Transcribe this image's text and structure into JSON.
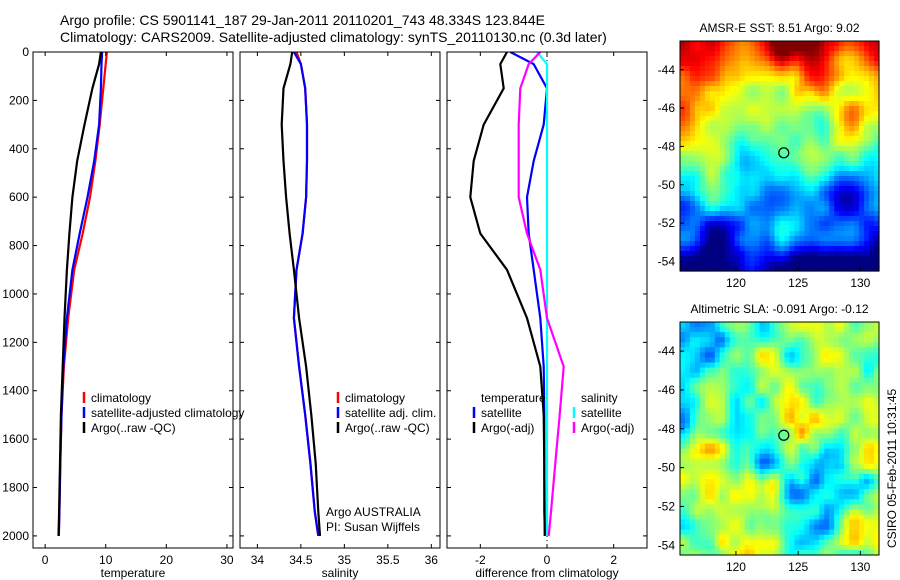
{
  "header": {
    "line1": "Argo profile: CS 5901141_187 29-Jan-2011 20110201_743 48.334S 123.844E",
    "line2": "Climatology: CARS2009. Satellite-adjusted climatology: synTS_20110130.nc (0.3d later)"
  },
  "credit": "CSIRO 05-Feb-2011 10:31:45",
  "colors": {
    "climatology": "#ff0000",
    "satellite": "#0000ff",
    "argo": "#000000",
    "sat_salinity_diff": "#00ffff",
    "argo_salinity_diff": "#ff00ff"
  },
  "chart_data": [
    {
      "type": "line",
      "xlabel": "temperature",
      "xlim": [
        -2,
        31
      ],
      "ylim": [
        2050,
        0
      ],
      "xticks": [
        0,
        10,
        20,
        30
      ],
      "yticks": [
        0,
        200,
        400,
        600,
        800,
        1000,
        1200,
        1400,
        1600,
        1800,
        2000
      ],
      "legend_position": "lower-right",
      "series": [
        {
          "name": "climatology",
          "color": "#ff0000",
          "x": [
            10.2,
            10.0,
            9.6,
            9.0,
            8.3,
            7.4,
            6.2,
            4.8,
            3.8,
            3.1,
            2.7,
            2.5,
            2.35,
            2.25
          ],
          "y": [
            0,
            50,
            150,
            300,
            450,
            600,
            750,
            900,
            1100,
            1300,
            1500,
            1700,
            1900,
            2000
          ]
        },
        {
          "name": "satellite-adjusted climatology",
          "color": "#0000ff",
          "x": [
            9.4,
            9.3,
            9.2,
            8.9,
            8.1,
            7.0,
            5.7,
            4.5,
            3.6,
            3.0,
            2.7,
            2.5,
            2.35,
            2.25
          ],
          "y": [
            0,
            50,
            150,
            300,
            450,
            600,
            750,
            900,
            1100,
            1300,
            1500,
            1700,
            1900,
            2000
          ]
        },
        {
          "name": "Argo(..raw -QC)",
          "color": "#000000",
          "x": [
            9.2,
            8.9,
            7.8,
            6.5,
            5.3,
            4.5,
            4.0,
            3.6,
            3.2,
            2.9,
            2.6,
            2.45,
            2.3,
            2.2
          ],
          "y": [
            0,
            50,
            150,
            300,
            450,
            600,
            750,
            900,
            1100,
            1300,
            1500,
            1700,
            1900,
            2000
          ]
        }
      ]
    },
    {
      "type": "line",
      "xlabel": "salinity",
      "xlim": [
        33.8,
        36.1
      ],
      "ylim": [
        2050,
        0
      ],
      "xticks": [
        34,
        34.5,
        35,
        35.5,
        36
      ],
      "yticks": [],
      "legend_position": "lower-right",
      "series": [
        {
          "name": "climatology",
          "color": "#ff0000",
          "x": [
            34.45,
            34.5,
            34.55,
            34.57,
            34.57,
            34.56,
            34.52,
            34.45,
            34.42,
            34.48,
            34.55,
            34.61,
            34.66,
            34.7
          ],
          "y": [
            0,
            50,
            150,
            300,
            450,
            600,
            750,
            900,
            1100,
            1300,
            1500,
            1700,
            1900,
            2000
          ]
        },
        {
          "name": "satellite adj. clim.",
          "color": "#0000ff",
          "x": [
            34.42,
            34.5,
            34.55,
            34.57,
            34.57,
            34.56,
            34.52,
            34.45,
            34.42,
            34.48,
            34.55,
            34.61,
            34.66,
            34.7
          ],
          "y": [
            0,
            50,
            150,
            300,
            450,
            600,
            750,
            900,
            1100,
            1300,
            1500,
            1700,
            1900,
            2000
          ]
        },
        {
          "name": "Argo(..raw -QC)",
          "color": "#000000",
          "x": [
            34.4,
            34.38,
            34.3,
            34.28,
            34.3,
            34.33,
            34.37,
            34.42,
            34.48,
            34.56,
            34.62,
            34.67,
            34.7,
            34.72
          ],
          "y": [
            0,
            50,
            150,
            300,
            450,
            600,
            750,
            900,
            1100,
            1300,
            1500,
            1700,
            1900,
            2000
          ]
        }
      ],
      "annotation": [
        "Argo AUSTRALIA",
        "PI: Susan Wijffels"
      ]
    },
    {
      "type": "line",
      "xlabel": "difference from climatology",
      "xlim": [
        -3.0,
        3.0
      ],
      "ylim": [
        2050,
        0
      ],
      "xticks": [
        -2,
        0,
        2
      ],
      "yticks": [],
      "legend_position": "lower",
      "legend_groups": {
        "temperature": "temperature",
        "salinity": "salinity"
      },
      "series": [
        {
          "name": "satellite",
          "group": "temperature",
          "color": "#0000ff",
          "x": [
            -1.1,
            -0.4,
            0.0,
            -0.1,
            -0.4,
            -0.6,
            -0.55,
            -0.4,
            -0.2,
            -0.1,
            -0.08,
            -0.08,
            -0.07,
            -0.07
          ],
          "y": [
            0,
            50,
            150,
            300,
            450,
            600,
            750,
            900,
            1100,
            1300,
            1500,
            1700,
            1900,
            2000
          ]
        },
        {
          "name": "Argo(-adj)",
          "group": "temperature",
          "color": "#000000",
          "x": [
            -1.2,
            -1.4,
            -1.3,
            -1.9,
            -2.2,
            -2.3,
            -2.0,
            -1.2,
            -0.6,
            -0.2,
            -0.1,
            -0.08,
            -0.08,
            -0.06
          ],
          "y": [
            0,
            50,
            150,
            300,
            450,
            600,
            750,
            900,
            1100,
            1300,
            1500,
            1700,
            1900,
            2000
          ]
        },
        {
          "name": "satellite",
          "group": "salinity",
          "color": "#00ffff",
          "x": [
            -0.3,
            0.0,
            0.0,
            0.0,
            0.0,
            0.0,
            0.0,
            0.0,
            0.0,
            0.0,
            0.0,
            0.0,
            0.0,
            0.0
          ],
          "y": [
            0,
            50,
            150,
            300,
            450,
            600,
            750,
            900,
            1100,
            1300,
            1500,
            1700,
            1900,
            2000
          ]
        },
        {
          "name": "Argo(-adj)",
          "group": "salinity",
          "color": "#ff00ff",
          "x": [
            -0.2,
            -0.55,
            -0.8,
            -0.85,
            -0.85,
            -0.85,
            -0.6,
            -0.2,
            0.0,
            0.5,
            0.38,
            0.25,
            0.12,
            0.05
          ],
          "y": [
            0,
            50,
            150,
            300,
            450,
            600,
            750,
            900,
            1100,
            1300,
            1500,
            1700,
            1900,
            2000
          ]
        }
      ]
    },
    {
      "type": "heatmap",
      "title": "AMSR-E SST: 8.51 Argo: 9.02",
      "xlim": [
        115.5,
        131.5
      ],
      "ylim": [
        -54.5,
        -42.5
      ],
      "xticks": [
        120,
        125,
        130
      ],
      "yticks": [
        -44,
        -46,
        -48,
        -50,
        -52,
        -54
      ],
      "marker": {
        "lon": 123.844,
        "lat": -48.334
      }
    },
    {
      "type": "heatmap",
      "title": "Altimetric SLA: -0.091 Argo: -0.12",
      "xlim": [
        115.5,
        131.5
      ],
      "ylim": [
        -54.5,
        -42.5
      ],
      "xticks": [
        120,
        125,
        130
      ],
      "yticks": [
        -44,
        -46,
        -48,
        -50,
        -52,
        -54
      ],
      "marker": {
        "lon": 123.844,
        "lat": -48.334
      }
    }
  ]
}
